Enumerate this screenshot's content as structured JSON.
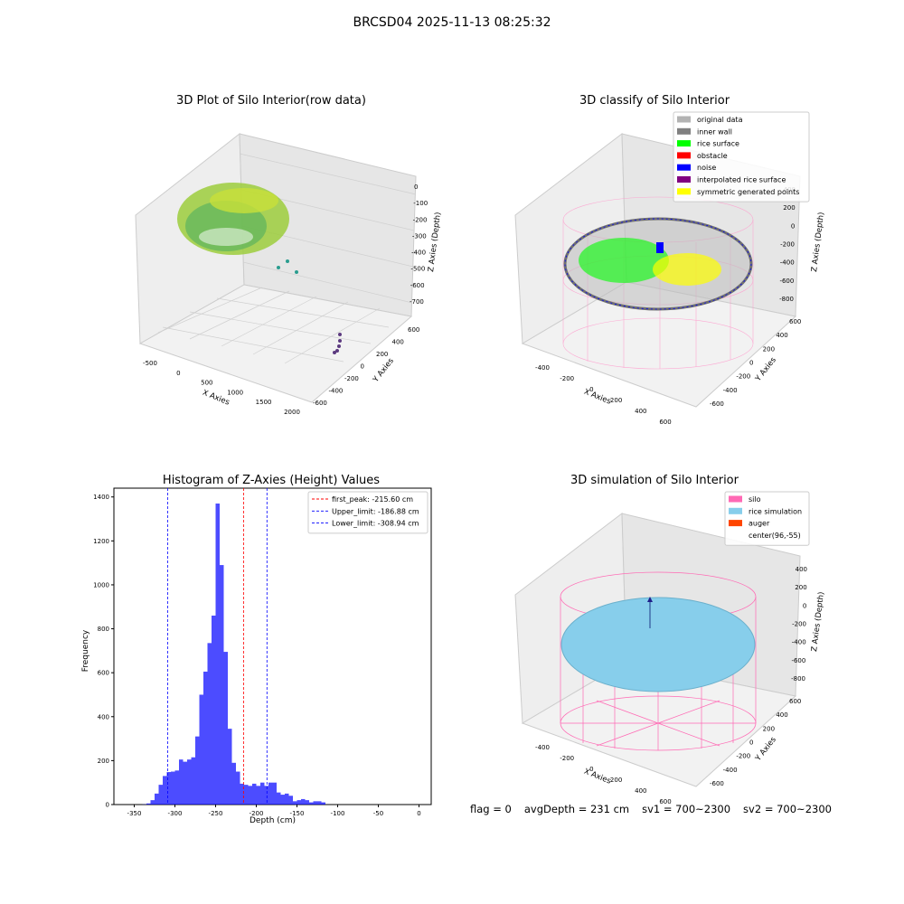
{
  "figure": {
    "title": "BRCSD04 2025-11-13 08:25:32"
  },
  "panels": {
    "raw": {
      "title": "3D Plot of Silo Interior(row data)",
      "xlabel": "X Axies",
      "ylabel": "Y Axies",
      "zlabel": "Z Axies (Depth)",
      "xticks": [
        "-500",
        "0",
        "500",
        "1000",
        "1500",
        "2000"
      ],
      "yticks": [
        "600",
        "400",
        "200",
        "0",
        "-200",
        "-400",
        "-600"
      ],
      "zticks": [
        "0",
        "-100",
        "-200",
        "-300",
        "-400",
        "-500",
        "-600",
        "-700"
      ]
    },
    "classify": {
      "title": "3D classify of Silo Interior",
      "xlabel": "X Axies",
      "ylabel": "Y Axies",
      "zlabel": "Z Axies (Depth)",
      "xticks": [
        "-400",
        "-200",
        "0",
        "200",
        "400",
        "600"
      ],
      "yticks": [
        "600",
        "400",
        "200",
        "0",
        "-200",
        "-400",
        "-600"
      ],
      "zticks": [
        "400",
        "200",
        "0",
        "-200",
        "-400",
        "-600",
        "-800"
      ],
      "legend": [
        {
          "label": "original data",
          "color": "#b3b3b3"
        },
        {
          "label": "inner wall",
          "color": "#808080"
        },
        {
          "label": "rice surface",
          "color": "#00ff00"
        },
        {
          "label": "obstacle",
          "color": "#ff0000"
        },
        {
          "label": "noise",
          "color": "#0000ff"
        },
        {
          "label": "interpolated rice surface",
          "color": "#800080"
        },
        {
          "label": "symmetric generated points",
          "color": "#ffff00"
        }
      ]
    },
    "simulation": {
      "title": "3D simulation of Silo Interior",
      "xlabel": "X Axies",
      "ylabel": "Y Axies",
      "zlabel": "Z Axies (Depth)",
      "xticks": [
        "-400",
        "-200",
        "0",
        "200",
        "400",
        "600"
      ],
      "yticks": [
        "600",
        "400",
        "200",
        "0",
        "-200",
        "-400",
        "-600"
      ],
      "zticks": [
        "400",
        "200",
        "0",
        "-200",
        "-400",
        "-600",
        "-800"
      ],
      "legend": [
        {
          "label": "silo",
          "color": "#ff69b4"
        },
        {
          "label": "rice simulation",
          "color": "#87ceeb"
        },
        {
          "label": "auger",
          "color": "#ff4500"
        },
        {
          "label": "center(96,-55)",
          "color": ""
        }
      ]
    }
  },
  "chart_data": [
    {
      "type": "bar",
      "title": "Histogram of Z-Axies (Height) Values",
      "xlabel": "Depth (cm)",
      "ylabel": "Frequency",
      "xlim": [
        -375,
        15
      ],
      "ylim": [
        0,
        1440
      ],
      "xticks": [
        -350,
        -300,
        -250,
        -200,
        -150,
        -100,
        -50,
        0
      ],
      "yticks": [
        0,
        200,
        400,
        600,
        800,
        1000,
        1200,
        1400
      ],
      "bin_edges_start": -340,
      "bin_width": 5,
      "values": [
        1,
        5,
        20,
        50,
        90,
        130,
        148,
        150,
        155,
        205,
        195,
        205,
        215,
        310,
        500,
        605,
        735,
        860,
        1370,
        1090,
        695,
        345,
        190,
        150,
        95,
        90,
        85,
        95,
        85,
        100,
        85,
        100,
        100,
        55,
        45,
        50,
        40,
        15,
        20,
        25,
        20,
        10,
        15,
        15,
        10
      ],
      "bar_color": "#0000ff",
      "series": [
        {
          "name": "first_peak: -215.60 cm",
          "value": -215.6,
          "color": "#ff0000"
        },
        {
          "name": "Upper_limit: -186.88 cm",
          "value": -186.88,
          "color": "#0000ff"
        },
        {
          "name": "Lower_limit: -308.94 cm",
          "value": -308.94,
          "color": "#0000ff"
        }
      ],
      "legend_position": "top-right"
    }
  ],
  "footer": {
    "flag": "flag = 0",
    "avg": "avgDepth = 231 cm",
    "sv1": "sv1 = 700~2300",
    "sv2": "sv2 = 700~2300"
  }
}
